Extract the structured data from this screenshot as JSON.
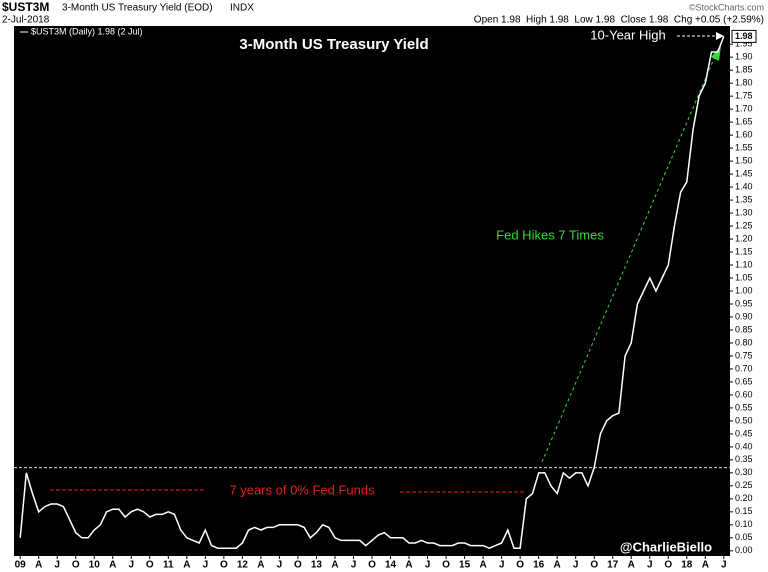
{
  "chart_data": {
    "type": "line",
    "symbol": "$UST3M",
    "name": "3-Month US Treasury Yield (EOD)",
    "exchange": "INDX",
    "date": "2-Jul-2018",
    "source": "©StockCharts.com",
    "quote": "Open 1.98  High 1.98  Low 1.98  Close 1.98  Chg +0.05 (+2.59%)",
    "legend": "$UST3M (Daily) 1.98 (2 Jul)",
    "title": "3-Month US Treasury Yield",
    "annotations": [
      "10-Year High",
      "Fed Hikes 7 Times",
      "7 years of 0% Fed Funds",
      "@CharlieBiello"
    ],
    "last_label": "1.98",
    "reference_line": 0.32,
    "color": "#ffffff",
    "x": [
      "2009-01",
      "2009-02",
      "2009-03",
      "2009-04",
      "2009-05",
      "2009-06",
      "2009-07",
      "2009-08",
      "2009-09",
      "2009-10",
      "2009-11",
      "2009-12",
      "2010-01",
      "2010-02",
      "2010-03",
      "2010-04",
      "2010-05",
      "2010-06",
      "2010-07",
      "2010-08",
      "2010-09",
      "2010-10",
      "2010-11",
      "2010-12",
      "2011-01",
      "2011-02",
      "2011-03",
      "2011-04",
      "2011-05",
      "2011-06",
      "2011-07",
      "2011-08",
      "2011-09",
      "2011-10",
      "2011-11",
      "2011-12",
      "2012-01",
      "2012-02",
      "2012-03",
      "2012-04",
      "2012-05",
      "2012-06",
      "2012-07",
      "2012-08",
      "2012-09",
      "2012-10",
      "2012-11",
      "2012-12",
      "2013-01",
      "2013-02",
      "2013-03",
      "2013-04",
      "2013-05",
      "2013-06",
      "2013-07",
      "2013-08",
      "2013-09",
      "2013-10",
      "2013-11",
      "2013-12",
      "2014-01",
      "2014-02",
      "2014-03",
      "2014-04",
      "2014-05",
      "2014-06",
      "2014-07",
      "2014-08",
      "2014-09",
      "2014-10",
      "2014-11",
      "2014-12",
      "2015-01",
      "2015-02",
      "2015-03",
      "2015-04",
      "2015-05",
      "2015-06",
      "2015-07",
      "2015-08",
      "2015-09",
      "2015-10",
      "2015-11",
      "2015-12",
      "2016-01",
      "2016-02",
      "2016-03",
      "2016-04",
      "2016-05",
      "2016-06",
      "2016-07",
      "2016-08",
      "2016-09",
      "2016-10",
      "2016-11",
      "2016-12",
      "2017-01",
      "2017-02",
      "2017-03",
      "2017-04",
      "2017-05",
      "2017-06",
      "2017-07",
      "2017-08",
      "2017-09",
      "2017-10",
      "2017-11",
      "2017-12",
      "2018-01",
      "2018-02",
      "2018-03",
      "2018-04",
      "2018-05",
      "2018-06",
      "2018-07"
    ],
    "values": [
      0.05,
      0.3,
      0.22,
      0.15,
      0.17,
      0.18,
      0.18,
      0.17,
      0.12,
      0.07,
      0.05,
      0.05,
      0.08,
      0.1,
      0.15,
      0.16,
      0.16,
      0.13,
      0.15,
      0.16,
      0.15,
      0.13,
      0.14,
      0.14,
      0.15,
      0.14,
      0.08,
      0.05,
      0.04,
      0.03,
      0.08,
      0.02,
      0.01,
      0.01,
      0.01,
      0.01,
      0.03,
      0.08,
      0.09,
      0.08,
      0.09,
      0.09,
      0.1,
      0.1,
      0.1,
      0.1,
      0.09,
      0.05,
      0.07,
      0.1,
      0.09,
      0.05,
      0.04,
      0.04,
      0.04,
      0.04,
      0.02,
      0.04,
      0.06,
      0.07,
      0.05,
      0.05,
      0.05,
      0.03,
      0.03,
      0.04,
      0.03,
      0.03,
      0.02,
      0.02,
      0.02,
      0.03,
      0.03,
      0.02,
      0.02,
      0.02,
      0.01,
      0.02,
      0.03,
      0.08,
      0.01,
      0.01,
      0.2,
      0.22,
      0.3,
      0.3,
      0.25,
      0.22,
      0.3,
      0.28,
      0.3,
      0.3,
      0.25,
      0.32,
      0.45,
      0.5,
      0.52,
      0.53,
      0.75,
      0.8,
      0.95,
      1.0,
      1.05,
      1.0,
      1.05,
      1.1,
      1.25,
      1.38,
      1.42,
      1.62,
      1.75,
      1.8,
      1.92,
      1.92,
      1.98
    ],
    "xlim": [
      "2008-12",
      "2018-08"
    ],
    "xticks": [
      {
        "value": "2009-01",
        "label": "09"
      },
      {
        "value": "2009-04",
        "label": "A"
      },
      {
        "value": "2009-07",
        "label": "J"
      },
      {
        "value": "2009-10",
        "label": "O"
      },
      {
        "value": "2010-01",
        "label": "10"
      },
      {
        "value": "2010-04",
        "label": "A"
      },
      {
        "value": "2010-07",
        "label": "J"
      },
      {
        "value": "2010-10",
        "label": "O"
      },
      {
        "value": "2011-01",
        "label": "11"
      },
      {
        "value": "2011-04",
        "label": "A"
      },
      {
        "value": "2011-07",
        "label": "J"
      },
      {
        "value": "2011-10",
        "label": "O"
      },
      {
        "value": "2012-01",
        "label": "12"
      },
      {
        "value": "2012-04",
        "label": "A"
      },
      {
        "value": "2012-07",
        "label": "J"
      },
      {
        "value": "2012-10",
        "label": "O"
      },
      {
        "value": "2013-01",
        "label": "13"
      },
      {
        "value": "2013-04",
        "label": "A"
      },
      {
        "value": "2013-07",
        "label": "J"
      },
      {
        "value": "2013-10",
        "label": "O"
      },
      {
        "value": "2014-01",
        "label": "14"
      },
      {
        "value": "2014-04",
        "label": "A"
      },
      {
        "value": "2014-07",
        "label": "J"
      },
      {
        "value": "2014-10",
        "label": "O"
      },
      {
        "value": "2015-01",
        "label": "15"
      },
      {
        "value": "2015-04",
        "label": "A"
      },
      {
        "value": "2015-07",
        "label": "J"
      },
      {
        "value": "2015-10",
        "label": "O"
      },
      {
        "value": "2016-01",
        "label": "16"
      },
      {
        "value": "2016-04",
        "label": "A"
      },
      {
        "value": "2016-07",
        "label": "J"
      },
      {
        "value": "2016-10",
        "label": "O"
      },
      {
        "value": "2017-01",
        "label": "17"
      },
      {
        "value": "2017-04",
        "label": "A"
      },
      {
        "value": "2017-07",
        "label": "J"
      },
      {
        "value": "2017-10",
        "label": "O"
      },
      {
        "value": "2018-01",
        "label": "18"
      },
      {
        "value": "2018-04",
        "label": "A"
      },
      {
        "value": "2018-07",
        "label": "J"
      }
    ],
    "ylim": [
      -0.02,
      2.02
    ],
    "yticks": [
      {
        "value": 0,
        "label": "0.00"
      },
      {
        "value": 0.05,
        "label": "0.05"
      },
      {
        "value": 0.1,
        "label": "0.10"
      },
      {
        "value": 0.15,
        "label": "0.15"
      },
      {
        "value": 0.2,
        "label": "0.20"
      },
      {
        "value": 0.25,
        "label": "0.25"
      },
      {
        "value": 0.3,
        "label": "0.30"
      },
      {
        "value": 0.35,
        "label": "0.35"
      },
      {
        "value": 0.4,
        "label": "0.40"
      },
      {
        "value": 0.45,
        "label": "0.45"
      },
      {
        "value": 0.5,
        "label": "0.50"
      },
      {
        "value": 0.55,
        "label": "0.55"
      },
      {
        "value": 0.6,
        "label": "0.60"
      },
      {
        "value": 0.65,
        "label": "0.65"
      },
      {
        "value": 0.7,
        "label": "0.70"
      },
      {
        "value": 0.75,
        "label": "0.75"
      },
      {
        "value": 0.8,
        "label": "0.80"
      },
      {
        "value": 0.85,
        "label": "0.85"
      },
      {
        "value": 0.9,
        "label": "0.90"
      },
      {
        "value": 0.95,
        "label": "0.95"
      },
      {
        "value": 1,
        "label": "1.00"
      },
      {
        "value": 1.05,
        "label": "1.05"
      },
      {
        "value": 1.1,
        "label": "1.10"
      },
      {
        "value": 1.15,
        "label": "1.15"
      },
      {
        "value": 1.2,
        "label": "1.20"
      },
      {
        "value": 1.25,
        "label": "1.25"
      },
      {
        "value": 1.3,
        "label": "1.30"
      },
      {
        "value": 1.35,
        "label": "1.35"
      },
      {
        "value": 1.4,
        "label": "1.40"
      },
      {
        "value": 1.45,
        "label": "1.45"
      },
      {
        "value": 1.5,
        "label": "1.50"
      },
      {
        "value": 1.55,
        "label": "1.55"
      },
      {
        "value": 1.6,
        "label": "1.60"
      },
      {
        "value": 1.65,
        "label": "1.65"
      },
      {
        "value": 1.7,
        "label": "1.70"
      },
      {
        "value": 1.75,
        "label": "1.75"
      },
      {
        "value": 1.8,
        "label": "1.80"
      },
      {
        "value": 1.85,
        "label": "1.85"
      },
      {
        "value": 1.9,
        "label": "1.90"
      },
      {
        "value": 1.95,
        "label": "1.95"
      }
    ]
  }
}
